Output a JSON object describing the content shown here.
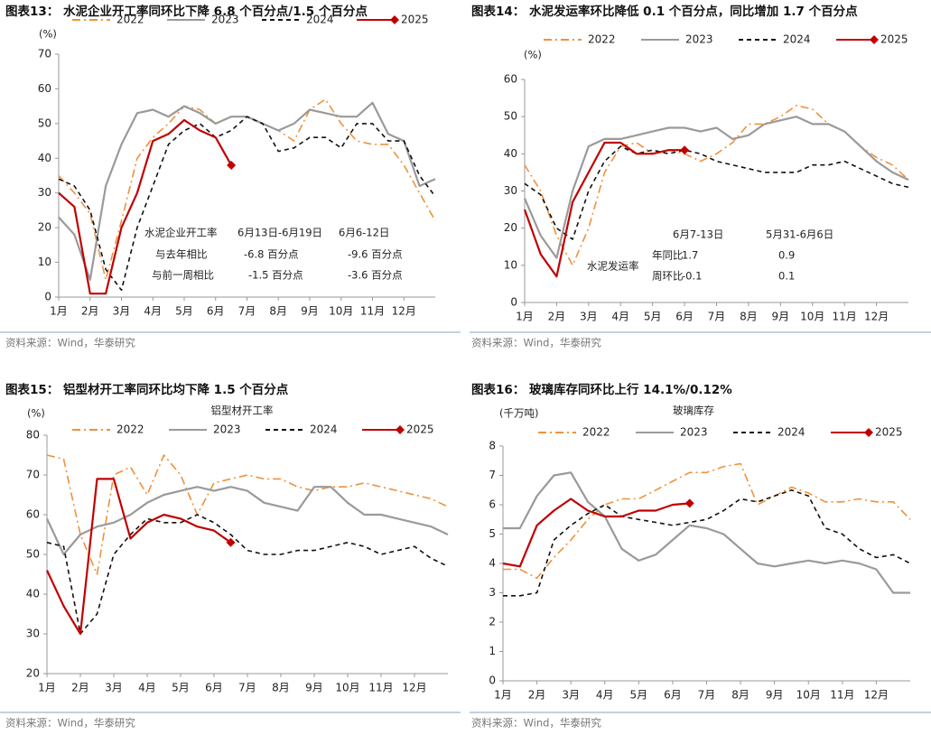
{
  "chart_data": [
    {
      "type": "line",
      "title": "图表13：  水泥企业开工率同环比下降 6.8 个百分点/1.5 个百分点",
      "y_label": "(%)",
      "x": [
        1,
        1.5,
        2,
        2.5,
        3,
        3.5,
        4,
        4.5,
        5,
        5.5,
        6,
        6.5,
        7,
        7.5,
        8,
        8.5,
        9,
        9.5,
        10,
        10.5,
        11,
        11.5,
        12,
        12.5,
        13
      ],
      "xlim": [
        1,
        13
      ],
      "xticks": [
        {
          "value": 1,
          "label": "1月"
        },
        {
          "value": 2,
          "label": "2月"
        },
        {
          "value": 3,
          "label": "3月"
        },
        {
          "value": 4,
          "label": "4月"
        },
        {
          "value": 5,
          "label": "5月"
        },
        {
          "value": 6,
          "label": "6月"
        },
        {
          "value": 7,
          "label": "7月"
        },
        {
          "value": 8,
          "label": "8月"
        },
        {
          "value": 9,
          "label": "9月"
        },
        {
          "value": 10,
          "label": "10月"
        },
        {
          "value": 11,
          "label": "11月"
        },
        {
          "value": 12,
          "label": "12月"
        }
      ],
      "ylim": [
        0,
        70
      ],
      "yticks": [
        0,
        10,
        20,
        30,
        40,
        50,
        60,
        70
      ],
      "series": [
        {
          "name": "2022",
          "color": "#f0913a",
          "dash": "dashdot",
          "values": [
            35,
            30,
            24,
            5,
            22,
            40,
            46,
            50,
            55,
            54,
            50,
            52,
            52,
            50,
            48,
            45,
            54,
            57,
            50,
            45,
            44,
            44,
            38,
            30,
            22
          ]
        },
        {
          "name": "2023",
          "color": "#9a9a9a",
          "dash": "solid",
          "values": [
            23,
            18,
            5,
            32,
            44,
            53,
            54,
            52,
            55,
            53,
            50,
            52,
            52,
            50,
            48,
            50,
            54,
            53,
            52,
            52,
            56,
            47,
            45,
            32,
            34
          ]
        },
        {
          "name": "2024",
          "color": "#111111",
          "dash": "dashed",
          "values": [
            34,
            32,
            25,
            8,
            2,
            20,
            32,
            44,
            48,
            50,
            46,
            48,
            52,
            50,
            42,
            43,
            46,
            46,
            43,
            50,
            50,
            45,
            45,
            35,
            29
          ]
        },
        {
          "name": "2025",
          "color": "#c00000",
          "dash": "solid",
          "marker": "diamond",
          "values": [
            30,
            26,
            1,
            1,
            20,
            30,
            45,
            47,
            51,
            48,
            46,
            38,
            null,
            null,
            null,
            null,
            null,
            null,
            null,
            null,
            null,
            null,
            null,
            null,
            null
          ]
        }
      ],
      "annotations": [
        "水泥企业开工率",
        "6月13日-6月19日",
        "6月6-12日",
        "与去年相比",
        "-6.8 百分点",
        "-9.6 百分点",
        "与前一周相比",
        "-1.5 百分点",
        "-3.6 百分点"
      ],
      "source": "资料来源：Wind，华泰研究"
    },
    {
      "type": "line",
      "title": "图表14：  水泥发运率环比降低 0.1 个百分点，同比增加 1.7 个百分点",
      "y_label": "(%)",
      "x": [
        1,
        1.5,
        2,
        2.5,
        3,
        3.5,
        4,
        4.5,
        5,
        5.5,
        6,
        6.5,
        7,
        7.5,
        8,
        8.5,
        9,
        9.5,
        10,
        10.5,
        11,
        11.5,
        12,
        12.5,
        13
      ],
      "xlim": [
        1,
        13
      ],
      "xticks": [
        {
          "value": 1,
          "label": "1月"
        },
        {
          "value": 2,
          "label": "2月"
        },
        {
          "value": 3,
          "label": "3月"
        },
        {
          "value": 4,
          "label": "4月"
        },
        {
          "value": 5,
          "label": "5月"
        },
        {
          "value": 6,
          "label": "6月"
        },
        {
          "value": 7,
          "label": "7月"
        },
        {
          "value": 8,
          "label": "8月"
        },
        {
          "value": 9,
          "label": "9月"
        },
        {
          "value": 10,
          "label": "10月"
        },
        {
          "value": 11,
          "label": "11月"
        },
        {
          "value": 12,
          "label": "12月"
        }
      ],
      "ylim": [
        0,
        60
      ],
      "yticks": [
        0,
        10,
        20,
        30,
        40,
        50,
        60
      ],
      "series": [
        {
          "name": "2022",
          "color": "#f0913a",
          "dash": "dashdot",
          "values": [
            37,
            30,
            18,
            10,
            20,
            35,
            42,
            43,
            40,
            41,
            40,
            38,
            40,
            43,
            48,
            48,
            50,
            53,
            52,
            48,
            46,
            42,
            39,
            37,
            33
          ]
        },
        {
          "name": "2023",
          "color": "#9a9a9a",
          "dash": "solid",
          "values": [
            28,
            18,
            12,
            30,
            42,
            44,
            44,
            45,
            46,
            47,
            47,
            46,
            47,
            44,
            45,
            48,
            49,
            50,
            48,
            48,
            46,
            42,
            38,
            35,
            33
          ]
        },
        {
          "name": "2024",
          "color": "#111111",
          "dash": "dashed",
          "values": [
            32,
            29,
            20,
            17,
            30,
            38,
            42,
            40,
            41,
            40,
            41,
            40,
            38,
            37,
            36,
            35,
            35,
            35,
            37,
            37,
            38,
            36,
            34,
            32,
            31
          ]
        },
        {
          "name": "2025",
          "color": "#c00000",
          "dash": "solid",
          "marker": "diamond",
          "values": [
            25,
            13,
            7,
            27,
            35,
            43,
            43,
            40,
            40,
            41,
            41,
            null,
            null,
            null,
            null,
            null,
            null,
            null,
            null,
            null,
            null,
            null,
            null,
            null,
            null
          ]
        }
      ],
      "annotations": [
        "6月7-13日",
        "5月31-6月6日",
        "水泥发运率",
        "年同比",
        "1.7",
        "0.9",
        "周环比",
        "-0.1",
        "0.1"
      ],
      "source": "资料来源：Wind，华泰研究"
    },
    {
      "type": "line",
      "title": "图表15：  铝型材开工率同环比均下降 1.5 个百分点",
      "subtitle": "铝型材开工率",
      "y_label": "(%)",
      "x": [
        1,
        1.5,
        2,
        2.5,
        3,
        3.5,
        4,
        4.5,
        5,
        5.5,
        6,
        6.5,
        7,
        7.5,
        8,
        8.5,
        9,
        9.5,
        10,
        10.5,
        11,
        11.5,
        12,
        12.5,
        13
      ],
      "xlim": [
        1,
        13
      ],
      "xticks": [
        {
          "value": 1,
          "label": "1月"
        },
        {
          "value": 2,
          "label": "2月"
        },
        {
          "value": 3,
          "label": "3月"
        },
        {
          "value": 4,
          "label": "4月"
        },
        {
          "value": 5,
          "label": "5月"
        },
        {
          "value": 6,
          "label": "6月"
        },
        {
          "value": 7,
          "label": "7月"
        },
        {
          "value": 8,
          "label": "8月"
        },
        {
          "value": 9,
          "label": "9月"
        },
        {
          "value": 10,
          "label": "10月"
        },
        {
          "value": 11,
          "label": "11月"
        },
        {
          "value": 12,
          "label": "12月"
        }
      ],
      "ylim": [
        20,
        80
      ],
      "yticks": [
        20,
        30,
        40,
        50,
        60,
        70,
        80
      ],
      "series": [
        {
          "name": "2022",
          "color": "#f0913a",
          "dash": "dashdot",
          "values": [
            75,
            74,
            55,
            45,
            70,
            72,
            65,
            75,
            70,
            60,
            68,
            69,
            70,
            69,
            69,
            67,
            66,
            67,
            67,
            68,
            67,
            66,
            65,
            64,
            62
          ]
        },
        {
          "name": "2023",
          "color": "#9a9a9a",
          "dash": "solid",
          "values": [
            59,
            50,
            55,
            57,
            58,
            60,
            63,
            65,
            66,
            67,
            66,
            67,
            66,
            63,
            62,
            61,
            67,
            67,
            63,
            60,
            60,
            59,
            58,
            57,
            55
          ]
        },
        {
          "name": "2024",
          "color": "#111111",
          "dash": "dashed",
          "values": [
            53,
            52,
            30,
            35,
            50,
            55,
            59,
            58,
            58,
            60,
            58,
            55,
            51,
            50,
            50,
            51,
            51,
            52,
            53,
            52,
            50,
            51,
            52,
            49,
            47
          ]
        },
        {
          "name": "2025",
          "color": "#c00000",
          "dash": "solid",
          "marker": "diamond",
          "values": [
            46,
            37,
            30,
            69,
            69,
            54,
            58,
            60,
            59,
            57,
            56,
            53,
            null,
            null,
            null,
            null,
            null,
            null,
            null,
            null,
            null,
            null,
            null,
            null,
            null
          ]
        }
      ],
      "source": "资料来源：Wind，华泰研究"
    },
    {
      "type": "line",
      "title": "图表16：  玻璃库存同环比上行 14.1%/0.12%",
      "subtitle": "玻璃库存",
      "y_label": "(千万吨)",
      "x": [
        1,
        1.5,
        2,
        2.5,
        3,
        3.5,
        4,
        4.5,
        5,
        5.5,
        6,
        6.5,
        7,
        7.5,
        8,
        8.5,
        9,
        9.5,
        10,
        10.5,
        11,
        11.5,
        12,
        12.5,
        13
      ],
      "xlim": [
        1,
        13
      ],
      "xticks": [
        {
          "value": 1,
          "label": "1月"
        },
        {
          "value": 2,
          "label": "2月"
        },
        {
          "value": 3,
          "label": "3月"
        },
        {
          "value": 4,
          "label": "4月"
        },
        {
          "value": 5,
          "label": "5月"
        },
        {
          "value": 6,
          "label": "6月"
        },
        {
          "value": 7,
          "label": "7月"
        },
        {
          "value": 8,
          "label": "8月"
        },
        {
          "value": 9,
          "label": "9月"
        },
        {
          "value": 10,
          "label": "10月"
        },
        {
          "value": 11,
          "label": "11月"
        },
        {
          "value": 12,
          "label": "12月"
        }
      ],
      "ylim": [
        0,
        8
      ],
      "yticks": [
        0,
        1,
        2,
        3,
        4,
        5,
        6,
        7,
        8
      ],
      "series": [
        {
          "name": "2022",
          "color": "#f0913a",
          "dash": "dashdot",
          "values": [
            3.8,
            3.8,
            3.5,
            4.2,
            4.8,
            5.5,
            6.0,
            6.2,
            6.2,
            6.5,
            6.8,
            7.1,
            7.1,
            7.3,
            7.4,
            6.0,
            6.3,
            6.6,
            6.4,
            6.1,
            6.1,
            6.2,
            6.1,
            6.1,
            5.5
          ]
        },
        {
          "name": "2023",
          "color": "#9a9a9a",
          "dash": "solid",
          "values": [
            5.2,
            5.2,
            6.3,
            7.0,
            7.1,
            6.1,
            5.6,
            4.5,
            4.1,
            4.3,
            4.8,
            5.3,
            5.2,
            5.0,
            4.5,
            4.0,
            3.9,
            4.0,
            4.1,
            4.0,
            4.1,
            4.0,
            3.8,
            3.0,
            3.0
          ]
        },
        {
          "name": "2024",
          "color": "#111111",
          "dash": "dashed",
          "values": [
            2.9,
            2.9,
            3.0,
            4.8,
            5.3,
            5.7,
            6.0,
            5.6,
            5.5,
            5.4,
            5.3,
            5.4,
            5.5,
            5.8,
            6.2,
            6.1,
            6.3,
            6.5,
            6.3,
            5.2,
            5.0,
            4.5,
            4.2,
            4.3,
            4.0
          ]
        },
        {
          "name": "2025",
          "color": "#c00000",
          "dash": "solid",
          "marker": "diamond",
          "values": [
            4.0,
            3.9,
            5.3,
            5.8,
            6.2,
            5.8,
            5.6,
            5.6,
            5.8,
            5.8,
            6.0,
            6.05,
            null,
            null,
            null,
            null,
            null,
            null,
            null,
            null,
            null,
            null,
            null,
            null,
            null
          ]
        }
      ],
      "source": "资料来源：Wind，华泰研究"
    }
  ]
}
